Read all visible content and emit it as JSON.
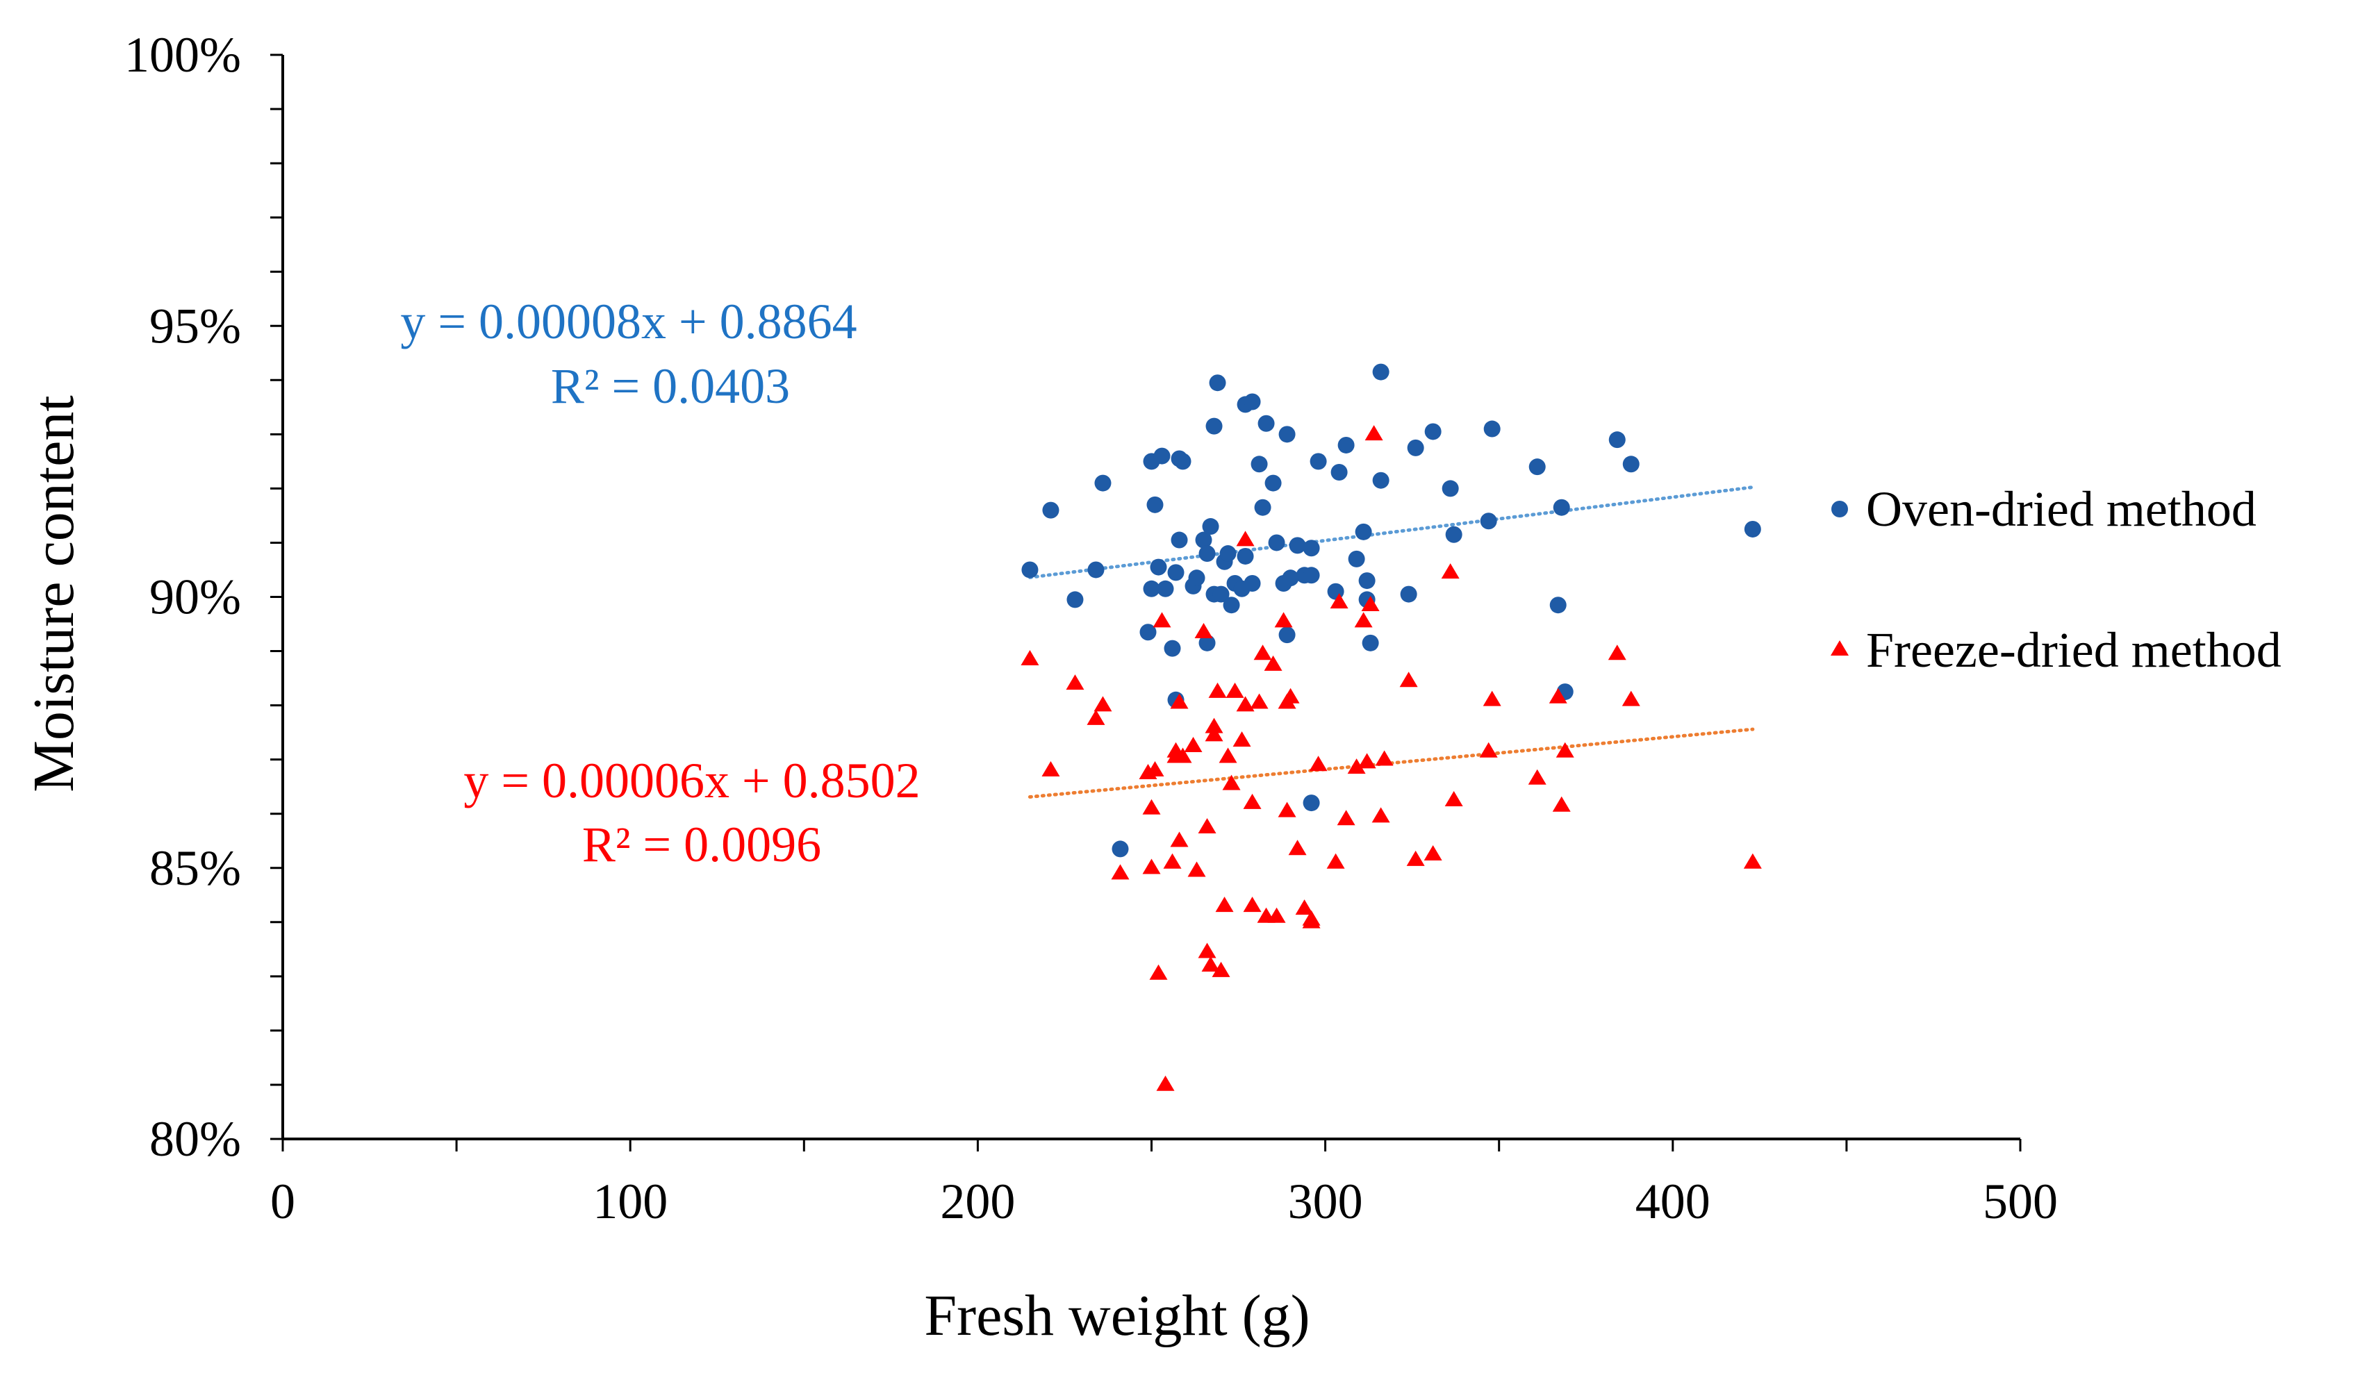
{
  "chart_data": {
    "type": "scatter",
    "xlabel": "Fresh weight (g)",
    "ylabel": "Moisture content",
    "xlim": [
      0,
      500
    ],
    "ylim": [
      0.8,
      1.0
    ],
    "x_ticks": [
      0,
      100,
      200,
      300,
      400,
      500
    ],
    "x_tick_labels": [
      "0",
      "100",
      "200",
      "300",
      "400",
      "500"
    ],
    "y_ticks": [
      0.8,
      0.85,
      0.9,
      0.95,
      1.0
    ],
    "y_tick_labels": [
      "80%",
      "85%",
      "90%",
      "95%",
      "100%"
    ],
    "legend_position": "right",
    "series": [
      {
        "name": "Oven-dried method",
        "marker": "circle",
        "color": "#1F5BA6",
        "trendline_color": "#5B9BD5",
        "trendline": {
          "slope": 8e-05,
          "intercept": 0.8864,
          "x_range": [
            215,
            423
          ]
        },
        "equation": "y = 0.00008x + 0.8864",
        "r_squared": "R² = 0.0403",
        "equation_color": "#1F73C4",
        "points": [
          [
            215,
            0.905
          ],
          [
            221,
            0.916
          ],
          [
            228,
            0.8995
          ],
          [
            234,
            0.905
          ],
          [
            236,
            0.921
          ],
          [
            241,
            0.8535
          ],
          [
            249,
            0.8935
          ],
          [
            250,
            0.925
          ],
          [
            250,
            0.9015
          ],
          [
            251,
            0.917
          ],
          [
            252,
            0.9055
          ],
          [
            253,
            0.926
          ],
          [
            254,
            0.9015
          ],
          [
            256,
            0.8905
          ],
          [
            257,
            0.881
          ],
          [
            257,
            0.9045
          ],
          [
            258,
            0.9255
          ],
          [
            258,
            0.9105
          ],
          [
            259,
            0.925
          ],
          [
            262,
            0.902
          ],
          [
            263,
            0.9035
          ],
          [
            265,
            0.9105
          ],
          [
            266,
            0.8915
          ],
          [
            266,
            0.908
          ],
          [
            267,
            0.913
          ],
          [
            268,
            0.9315
          ],
          [
            268,
            0.9005
          ],
          [
            269,
            0.9395
          ],
          [
            270,
            0.9005
          ],
          [
            271,
            0.9065
          ],
          [
            272,
            0.908
          ],
          [
            273,
            0.8985
          ],
          [
            274,
            0.9025
          ],
          [
            276,
            0.9015
          ],
          [
            277,
            0.9075
          ],
          [
            277,
            0.9355
          ],
          [
            279,
            0.9025
          ],
          [
            279,
            0.936
          ],
          [
            281,
            0.9245
          ],
          [
            282,
            0.9165
          ],
          [
            283,
            0.932
          ],
          [
            285,
            0.921
          ],
          [
            286,
            0.91
          ],
          [
            288,
            0.9025
          ],
          [
            289,
            0.893
          ],
          [
            289,
            0.93
          ],
          [
            290,
            0.9035
          ],
          [
            292,
            0.9095
          ],
          [
            294,
            0.904
          ],
          [
            296,
            0.904
          ],
          [
            296,
            0.909
          ],
          [
            296,
            0.862
          ],
          [
            298,
            0.925
          ],
          [
            303,
            0.901
          ],
          [
            304,
            0.923
          ],
          [
            306,
            0.928
          ],
          [
            309,
            0.907
          ],
          [
            311,
            0.912
          ],
          [
            312,
            0.903
          ],
          [
            312,
            0.8995
          ],
          [
            313,
            0.8915
          ],
          [
            316,
            0.9415
          ],
          [
            316,
            0.9215
          ],
          [
            324,
            0.9005
          ],
          [
            326,
            0.9275
          ],
          [
            331,
            0.9305
          ],
          [
            336,
            0.92
          ],
          [
            337,
            0.9115
          ],
          [
            347,
            0.914
          ],
          [
            348,
            0.931
          ],
          [
            361,
            0.924
          ],
          [
            367,
            0.8985
          ],
          [
            368,
            0.9165
          ],
          [
            369,
            0.8825
          ],
          [
            384,
            0.929
          ],
          [
            388,
            0.9245
          ],
          [
            423,
            0.9125
          ]
        ]
      },
      {
        "name": "Freeze-dried method",
        "marker": "triangle",
        "color": "#FF0000",
        "trendline_color": "#ED7D31",
        "trendline": {
          "slope": 6e-05,
          "intercept": 0.8502,
          "x_range": [
            215,
            423
          ]
        },
        "equation": "y = 0.00006x + 0.8502",
        "r_squared": "R² = 0.0096",
        "equation_color": "#FF0000",
        "points": [
          [
            215,
            0.8885
          ],
          [
            221,
            0.868
          ],
          [
            228,
            0.884
          ],
          [
            234,
            0.8775
          ],
          [
            236,
            0.88
          ],
          [
            241,
            0.849
          ],
          [
            249,
            0.8675
          ],
          [
            250,
            0.861
          ],
          [
            250,
            0.85
          ],
          [
            251,
            0.868
          ],
          [
            252,
            0.8305
          ],
          [
            253,
            0.8955
          ],
          [
            254,
            0.81
          ],
          [
            256,
            0.851
          ],
          [
            257,
            0.8705
          ],
          [
            257,
            0.8715
          ],
          [
            258,
            0.855
          ],
          [
            258,
            0.8805
          ],
          [
            259,
            0.8705
          ],
          [
            262,
            0.8725
          ],
          [
            263,
            0.8495
          ],
          [
            265,
            0.8935
          ],
          [
            266,
            0.8575
          ],
          [
            266,
            0.8345
          ],
          [
            267,
            0.832
          ],
          [
            268,
            0.8745
          ],
          [
            268,
            0.876
          ],
          [
            269,
            0.8825
          ],
          [
            270,
            0.831
          ],
          [
            271,
            0.843
          ],
          [
            272,
            0.8705
          ],
          [
            273,
            0.8655
          ],
          [
            274,
            0.8825
          ],
          [
            276,
            0.8735
          ],
          [
            277,
            0.88
          ],
          [
            277,
            0.9105
          ],
          [
            279,
            0.843
          ],
          [
            279,
            0.862
          ],
          [
            281,
            0.8805
          ],
          [
            282,
            0.8895
          ],
          [
            283,
            0.841
          ],
          [
            285,
            0.8875
          ],
          [
            286,
            0.841
          ],
          [
            288,
            0.8955
          ],
          [
            289,
            0.8805
          ],
          [
            289,
            0.8605
          ],
          [
            290,
            0.8815
          ],
          [
            292,
            0.8535
          ],
          [
            294,
            0.8425
          ],
          [
            296,
            0.84
          ],
          [
            296,
            0.8405
          ],
          [
            298,
            0.869
          ],
          [
            303,
            0.851
          ],
          [
            304,
            0.899
          ],
          [
            306,
            0.859
          ],
          [
            309,
            0.8685
          ],
          [
            311,
            0.8955
          ],
          [
            312,
            0.8695
          ],
          [
            313,
            0.8985
          ],
          [
            314,
            0.93
          ],
          [
            316,
            0.8595
          ],
          [
            317,
            0.87
          ],
          [
            324,
            0.8845
          ],
          [
            326,
            0.8515
          ],
          [
            331,
            0.8525
          ],
          [
            336,
            0.9045
          ],
          [
            337,
            0.8625
          ],
          [
            347,
            0.8715
          ],
          [
            348,
            0.881
          ],
          [
            361,
            0.8665
          ],
          [
            367,
            0.8815
          ],
          [
            368,
            0.8615
          ],
          [
            369,
            0.8715
          ],
          [
            384,
            0.8895
          ],
          [
            388,
            0.881
          ],
          [
            423,
            0.851
          ]
        ]
      }
    ]
  }
}
